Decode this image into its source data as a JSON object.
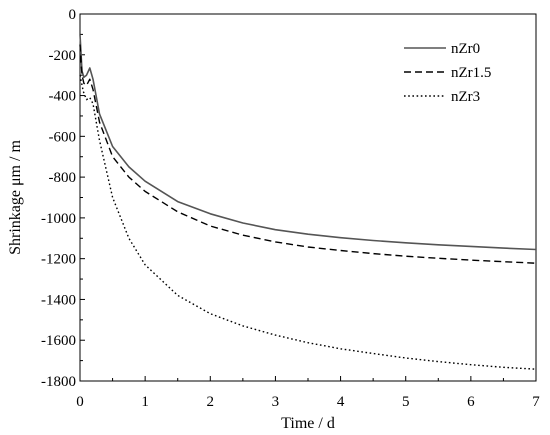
{
  "chart_data": {
    "type": "line",
    "title": "",
    "xlabel": "Time / d",
    "ylabel": "Shrinkage μm / m",
    "xlim": [
      0,
      7
    ],
    "ylim": [
      -1800,
      0
    ],
    "xticks": [
      "0",
      "1",
      "2",
      "3",
      "4",
      "5",
      "6",
      "7"
    ],
    "yticks": [
      "0",
      "-200",
      "-400",
      "-600",
      "-800",
      "-1000",
      "-1200",
      "-1400",
      "-1600",
      "-1800"
    ],
    "grid": false,
    "legend_position": "top-right",
    "series": [
      {
        "name": "nZr0",
        "style": "solid",
        "color": "#555555",
        "x": [
          0,
          0.03,
          0.06,
          0.1,
          0.15,
          0.2,
          0.3,
          0.5,
          0.75,
          1,
          1.5,
          2,
          2.5,
          3,
          3.5,
          4,
          4.5,
          5,
          5.5,
          6,
          6.5,
          7
        ],
        "y": [
          -100,
          -280,
          -310,
          -300,
          -265,
          -320,
          -490,
          -650,
          -750,
          -820,
          -920,
          -980,
          -1025,
          -1058,
          -1080,
          -1097,
          -1111,
          -1122,
          -1132,
          -1140,
          -1148,
          -1155
        ]
      },
      {
        "name": "nZr1.5",
        "style": "dashed",
        "color": "#000000",
        "x": [
          0,
          0.03,
          0.06,
          0.1,
          0.15,
          0.2,
          0.3,
          0.5,
          0.75,
          1,
          1.5,
          2,
          2.5,
          3,
          3.5,
          4,
          4.5,
          5,
          5.5,
          6,
          6.5,
          7
        ],
        "y": [
          -150,
          -300,
          -340,
          -350,
          -320,
          -370,
          -530,
          -700,
          -800,
          -870,
          -970,
          -1040,
          -1085,
          -1118,
          -1143,
          -1160,
          -1175,
          -1188,
          -1198,
          -1207,
          -1215,
          -1222
        ]
      },
      {
        "name": "nZr3",
        "style": "dotted",
        "color": "#000000",
        "x": [
          0,
          0.05,
          0.1,
          0.15,
          0.2,
          0.3,
          0.5,
          0.75,
          1,
          1.5,
          2,
          2.5,
          3,
          3.5,
          4,
          4.5,
          5,
          5.5,
          6,
          6.5,
          7
        ],
        "y": [
          -300,
          -380,
          -420,
          -410,
          -440,
          -620,
          -900,
          -1100,
          -1230,
          -1380,
          -1470,
          -1530,
          -1575,
          -1612,
          -1642,
          -1665,
          -1687,
          -1705,
          -1720,
          -1733,
          -1742
        ]
      }
    ]
  }
}
